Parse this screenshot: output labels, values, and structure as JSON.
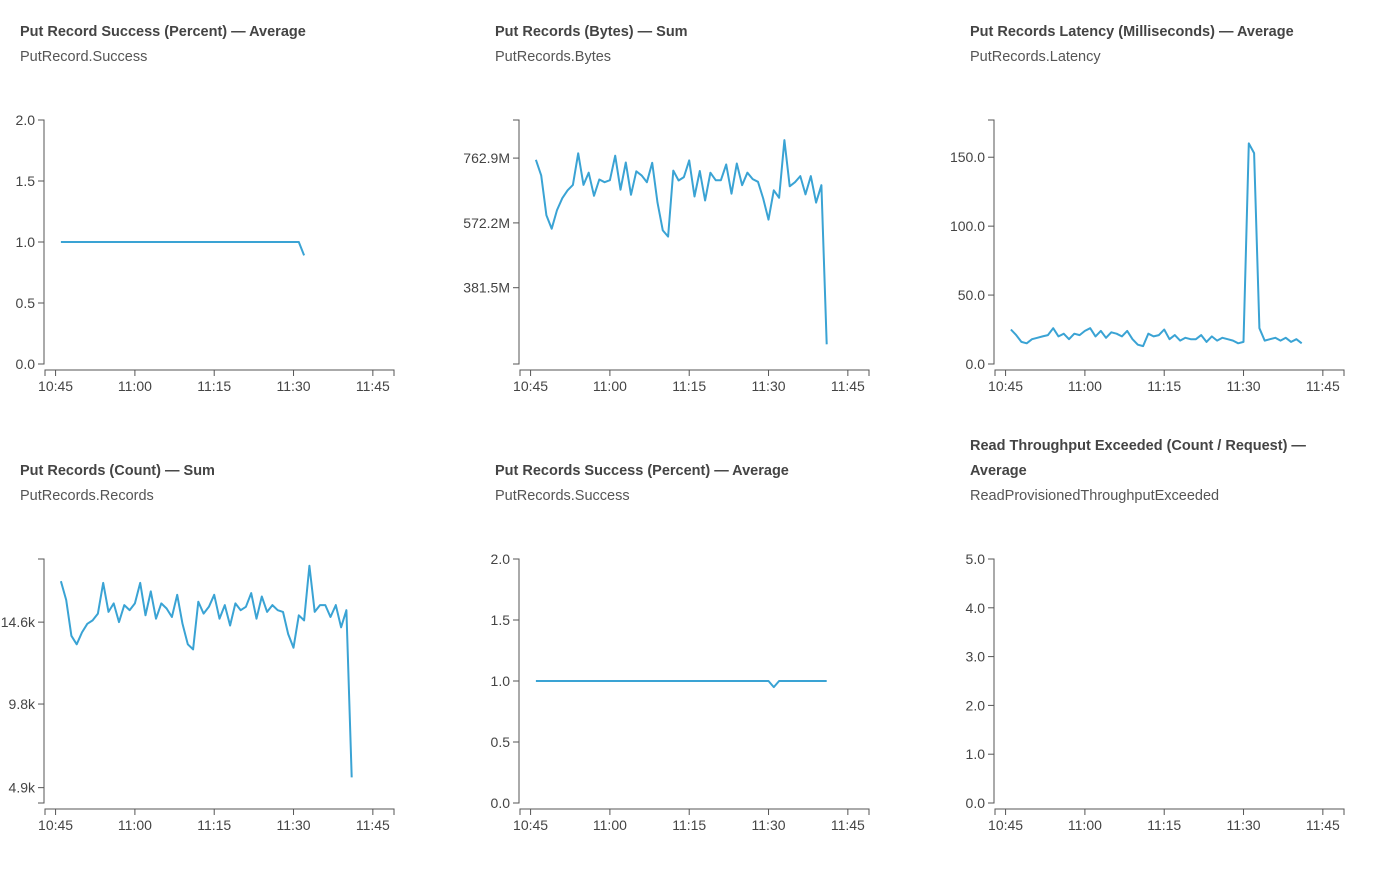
{
  "chart_data": [
    {
      "type": "line",
      "title": "Put Record Success (Percent) — Average",
      "subtitle": "PutRecord.Success",
      "x_ticks": [
        "10:45",
        "11:00",
        "11:15",
        "11:30",
        "11:45"
      ],
      "xlim": [
        "10:43",
        "11:49"
      ],
      "ylim": [
        0,
        2
      ],
      "y_ticks": [
        "0.0",
        "0.5",
        "1.0",
        "1.5",
        "2.0"
      ],
      "y_tick_values": [
        0,
        0.5,
        1.0,
        1.5,
        2.0
      ],
      "series": [
        {
          "x": [
            "10:46",
            "11:31",
            "11:32"
          ],
          "values": [
            1.0,
            1.0,
            0.89
          ]
        }
      ]
    },
    {
      "type": "line",
      "title": "Put Records (Bytes) — Sum",
      "subtitle": "PutRecords.Bytes",
      "x_ticks": [
        "10:45",
        "11:00",
        "11:15",
        "11:30",
        "11:45"
      ],
      "xlim": [
        "10:43",
        "11:49"
      ],
      "ylim": [
        157000000,
        875000000
      ],
      "y_ticks": [
        "381.5M",
        "572.2M",
        "762.9M"
      ],
      "y_tick_values": [
        381500000,
        572200000,
        762900000
      ],
      "series": [
        {
          "x": [
            "10:46",
            "10:47",
            "10:48",
            "10:49",
            "10:50",
            "10:51",
            "10:52",
            "10:53",
            "10:54",
            "10:55",
            "10:56",
            "10:57",
            "10:58",
            "10:59",
            "11:00",
            "11:01",
            "11:02",
            "11:03",
            "11:04",
            "11:05",
            "11:06",
            "11:07",
            "11:08",
            "11:09",
            "11:10",
            "11:11",
            "11:12",
            "11:13",
            "11:14",
            "11:15",
            "11:16",
            "11:17",
            "11:18",
            "11:19",
            "11:20",
            "11:21",
            "11:22",
            "11:23",
            "11:24",
            "11:25",
            "11:26",
            "11:27",
            "11:28",
            "11:29",
            "11:30",
            "11:31",
            "11:32",
            "11:33",
            "11:34",
            "11:35",
            "11:36",
            "11:37",
            "11:38",
            "11:39",
            "11:40",
            "11:41"
          ],
          "values": [
            758000000,
            712000000,
            595000000,
            555000000,
            610000000,
            645000000,
            668000000,
            684000000,
            777000000,
            684000000,
            720000000,
            652000000,
            700000000,
            692000000,
            698000000,
            770000000,
            670000000,
            750000000,
            655000000,
            724000000,
            712000000,
            692000000,
            749000000,
            632000000,
            550000000,
            532000000,
            726000000,
            697000000,
            707000000,
            756000000,
            650000000,
            725000000,
            638000000,
            720000000,
            698000000,
            698000000,
            744000000,
            658000000,
            747000000,
            683000000,
            720000000,
            701000000,
            693000000,
            644000000,
            582000000,
            668000000,
            646000000,
            816000000,
            680000000,
            692000000,
            710000000,
            656000000,
            710000000,
            632000000,
            683000000,
            215000000
          ]
        }
      ]
    },
    {
      "type": "line",
      "title": "Put Records Latency (Milliseconds) — Average",
      "subtitle": "PutRecords.Latency",
      "x_ticks": [
        "10:45",
        "11:00",
        "11:15",
        "11:30",
        "11:45"
      ],
      "xlim": [
        "10:43",
        "11:49"
      ],
      "ylim": [
        0,
        177
      ],
      "y_ticks": [
        "0.0",
        "50.0",
        "100.0",
        "150.0"
      ],
      "y_tick_values": [
        0,
        50,
        100,
        150
      ],
      "series": [
        {
          "x": [
            "10:46",
            "10:47",
            "10:48",
            "10:49",
            "10:50",
            "10:51",
            "10:52",
            "10:53",
            "10:54",
            "10:55",
            "10:56",
            "10:57",
            "10:58",
            "10:59",
            "11:00",
            "11:01",
            "11:02",
            "11:03",
            "11:04",
            "11:05",
            "11:06",
            "11:07",
            "11:08",
            "11:09",
            "11:10",
            "11:11",
            "11:12",
            "11:13",
            "11:14",
            "11:15",
            "11:16",
            "11:17",
            "11:18",
            "11:19",
            "11:20",
            "11:21",
            "11:22",
            "11:23",
            "11:24",
            "11:25",
            "11:26",
            "11:27",
            "11:28",
            "11:29",
            "11:30",
            "11:31",
            "11:32",
            "11:33",
            "11:34",
            "11:35",
            "11:36",
            "11:37",
            "11:38",
            "11:39",
            "11:40",
            "11:41"
          ],
          "values": [
            25,
            21,
            16,
            15,
            18,
            19,
            20,
            21,
            26,
            20,
            22,
            18,
            22,
            21,
            24,
            26,
            20,
            24,
            19,
            23,
            22,
            20,
            24,
            18,
            14,
            13,
            22,
            20,
            21,
            25,
            18,
            21,
            17,
            19,
            18,
            18,
            21,
            16,
            20,
            17,
            19,
            18,
            17,
            15,
            16,
            160,
            153,
            26,
            17,
            18,
            19,
            17,
            19,
            16,
            18,
            15
          ]
        }
      ]
    },
    {
      "type": "line",
      "title": "Put Records (Count) — Sum",
      "subtitle": "PutRecords.Records",
      "x_ticks": [
        "10:45",
        "11:00",
        "11:15",
        "11:30",
        "11:45"
      ],
      "xlim": [
        "10:43",
        "11:49"
      ],
      "ylim": [
        4000,
        18300
      ],
      "y_ticks": [
        "4.9k",
        "9.8k",
        "14.6k"
      ],
      "y_tick_values": [
        4900,
        9800,
        14600
      ],
      "series": [
        {
          "x": [
            "10:46",
            "10:47",
            "10:48",
            "10:49",
            "10:50",
            "10:51",
            "10:52",
            "10:53",
            "10:54",
            "10:55",
            "10:56",
            "10:57",
            "10:58",
            "10:59",
            "11:00",
            "11:01",
            "11:02",
            "11:03",
            "11:04",
            "11:05",
            "11:06",
            "11:07",
            "11:08",
            "11:09",
            "11:10",
            "11:11",
            "11:12",
            "11:13",
            "11:14",
            "11:15",
            "11:16",
            "11:17",
            "11:18",
            "11:19",
            "11:20",
            "11:21",
            "11:22",
            "11:23",
            "11:24",
            "11:25",
            "11:26",
            "11:27",
            "11:28",
            "11:29",
            "11:30",
            "11:31",
            "11:32",
            "11:33",
            "11:34",
            "11:35",
            "11:36",
            "11:37",
            "11:38",
            "11:39",
            "11:40",
            "11:41"
          ],
          "values": [
            17000,
            15900,
            13800,
            13300,
            14000,
            14500,
            14700,
            15100,
            16900,
            15200,
            15700,
            14600,
            15600,
            15300,
            15700,
            16900,
            15000,
            16400,
            14800,
            15700,
            15400,
            14900,
            16200,
            14500,
            13300,
            13000,
            15800,
            15100,
            15500,
            16200,
            14800,
            15600,
            14400,
            15700,
            15300,
            15500,
            16300,
            14800,
            16100,
            15200,
            15600,
            15300,
            15200,
            13900,
            13100,
            15000,
            14700,
            17900,
            15200,
            15600,
            15600,
            14900,
            15600,
            14300,
            15300,
            5500
          ]
        }
      ]
    },
    {
      "type": "line",
      "title": "Put Records Success (Percent) — Average",
      "subtitle": "PutRecords.Success",
      "x_ticks": [
        "10:45",
        "11:00",
        "11:15",
        "11:30",
        "11:45"
      ],
      "xlim": [
        "10:43",
        "11:49"
      ],
      "ylim": [
        0,
        2
      ],
      "y_ticks": [
        "0.0",
        "0.5",
        "1.0",
        "1.5",
        "2.0"
      ],
      "y_tick_values": [
        0,
        0.5,
        1.0,
        1.5,
        2.0
      ],
      "series": [
        {
          "x": [
            "10:46",
            "11:29",
            "11:30",
            "11:31",
            "11:32",
            "11:41"
          ],
          "values": [
            1.0,
            1.0,
            1.0,
            0.95,
            1.0,
            1.0
          ]
        }
      ]
    },
    {
      "type": "line",
      "title": "Read Throughput Exceeded (Count / Request) — Average",
      "subtitle": "ReadProvisionedThroughputExceeded",
      "x_ticks": [
        "10:45",
        "11:00",
        "11:15",
        "11:30",
        "11:45"
      ],
      "xlim": [
        "10:43",
        "11:49"
      ],
      "ylim": [
        0,
        5
      ],
      "y_ticks": [
        "0.0",
        "1.0",
        "2.0",
        "3.0",
        "4.0",
        "5.0"
      ],
      "y_tick_values": [
        0,
        1,
        2,
        3,
        4,
        5
      ],
      "series": []
    }
  ]
}
